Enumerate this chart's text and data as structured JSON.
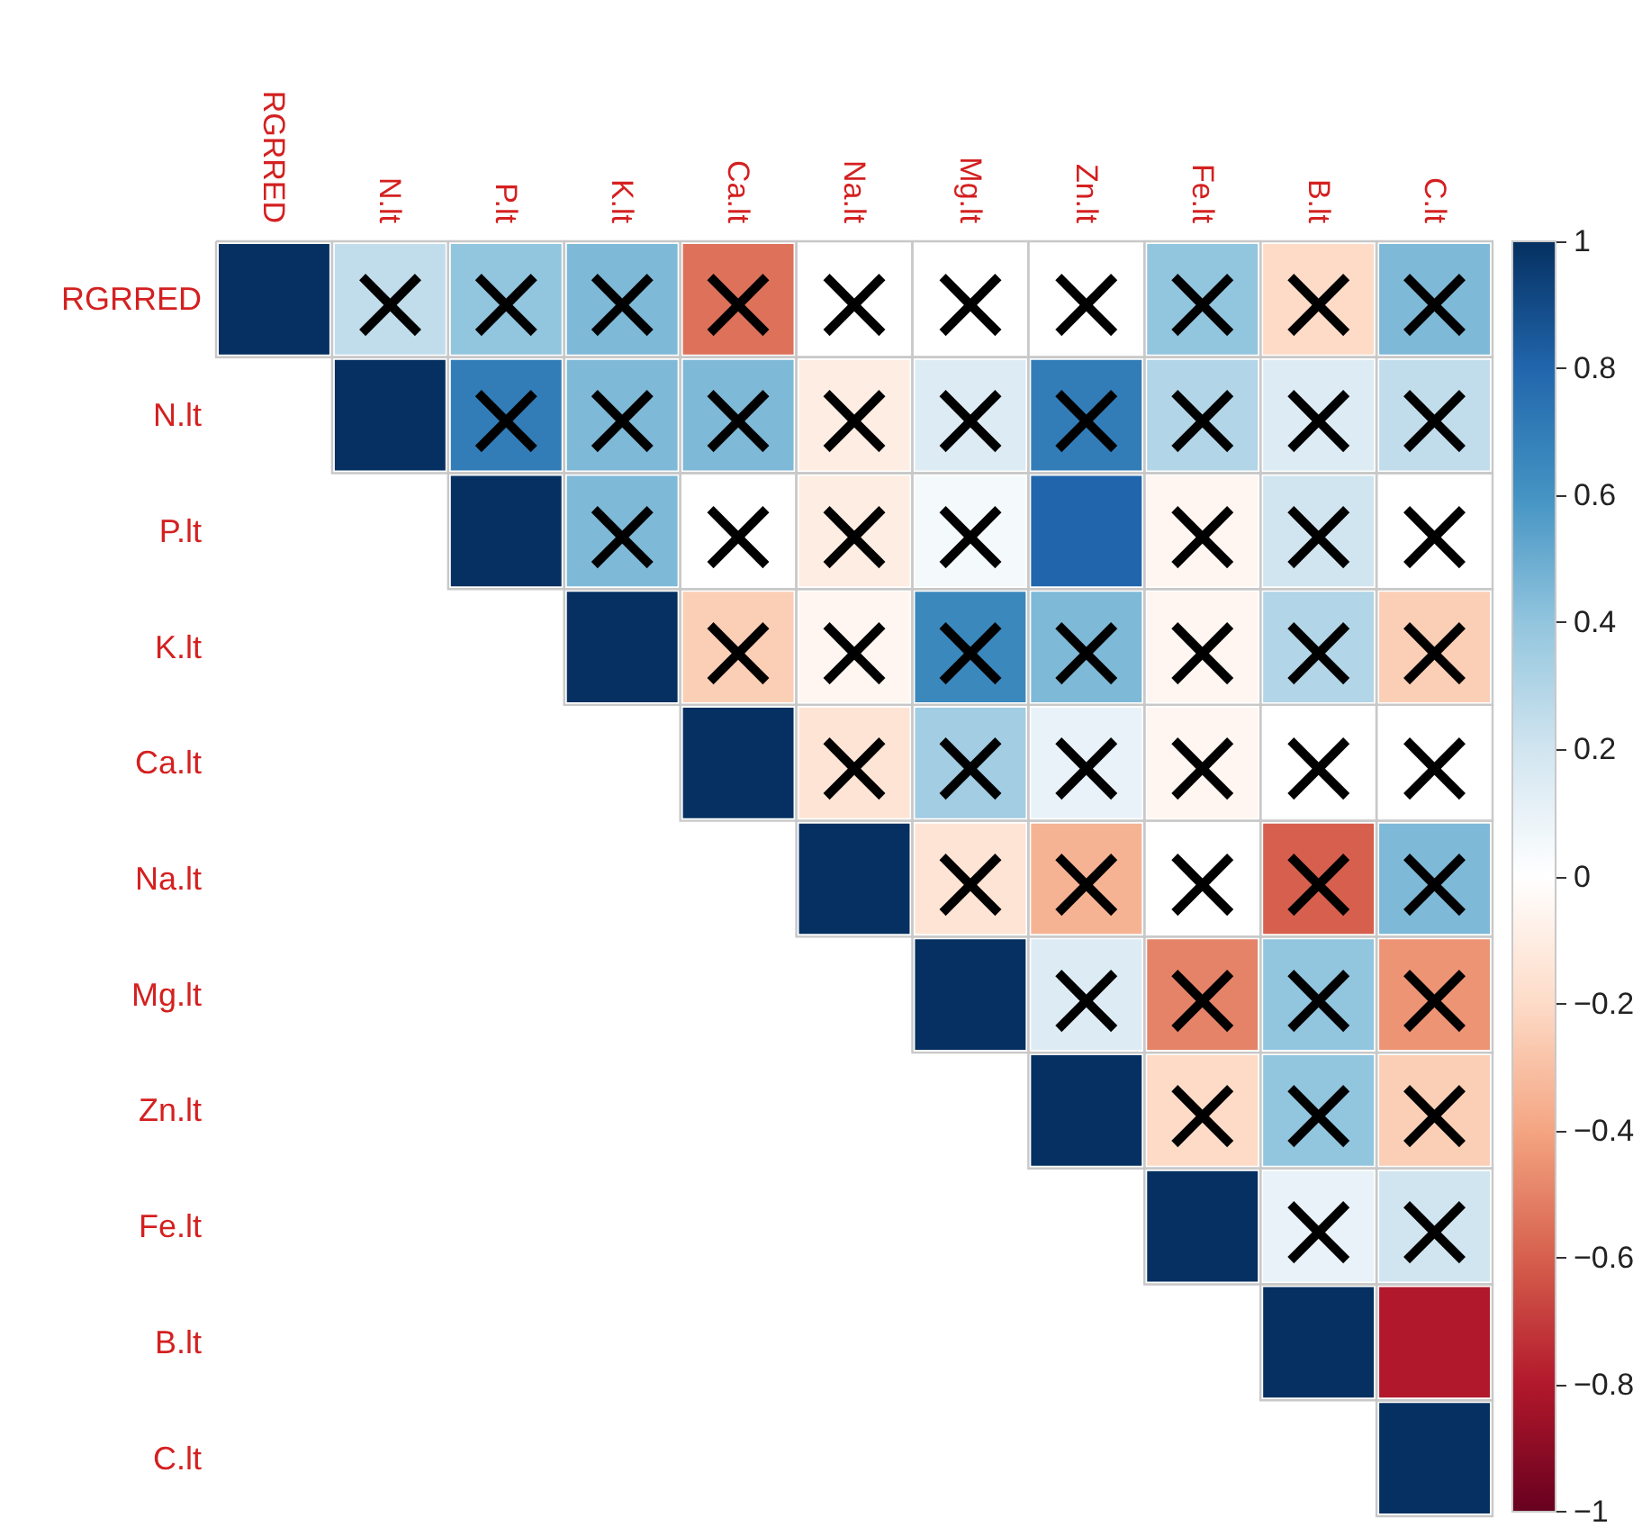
{
  "chart_data": {
    "type": "heatmap",
    "categories": [
      "RGRRED",
      "N.lt",
      "P.lt",
      "K.lt",
      "Ca.lt",
      "Na.lt",
      "Mg.lt",
      "Zn.lt",
      "Fe.lt",
      "B.lt",
      "C.lt"
    ],
    "y_categories": [
      "RGRRED",
      "N.lt",
      "P.lt",
      "K.lt",
      "Ca.lt",
      "Na.lt",
      "Mg.lt",
      "Zn.lt",
      "Fe.lt",
      "B.lt",
      "C.lt"
    ],
    "cells": [
      [
        1,
        0.25,
        0.4,
        0.45,
        -0.55,
        0,
        0,
        0,
        0.4,
        -0.2,
        0.45
      ],
      [
        null,
        1,
        0.7,
        0.45,
        0.45,
        -0.1,
        0.15,
        0.7,
        0.3,
        0.15,
        0.25
      ],
      [
        null,
        null,
        1,
        0.45,
        0,
        -0.1,
        0.05,
        0.8,
        -0.05,
        0.2,
        0
      ],
      [
        null,
        null,
        null,
        1,
        -0.25,
        -0.05,
        0.65,
        0.45,
        -0.05,
        0.3,
        -0.25
      ],
      [
        null,
        null,
        null,
        null,
        1,
        -0.15,
        0.35,
        0.1,
        -0.05,
        0,
        0
      ],
      [
        null,
        null,
        null,
        null,
        null,
        1,
        -0.15,
        -0.35,
        0,
        -0.6,
        0.45
      ],
      [
        null,
        null,
        null,
        null,
        null,
        null,
        1,
        0.15,
        -0.5,
        0.4,
        -0.45
      ],
      [
        null,
        null,
        null,
        null,
        null,
        null,
        null,
        1,
        -0.2,
        0.4,
        -0.25
      ],
      [
        null,
        null,
        null,
        null,
        null,
        null,
        null,
        null,
        1,
        0.1,
        0.2
      ],
      [
        null,
        null,
        null,
        null,
        null,
        null,
        null,
        null,
        null,
        1,
        -0.8
      ],
      [
        null,
        null,
        null,
        null,
        null,
        null,
        null,
        null,
        null,
        null,
        1
      ]
    ],
    "cell_labels": [
      [
        null,
        "×",
        "×",
        "×",
        "×",
        "×",
        "×",
        "×",
        "×",
        "×",
        "×"
      ],
      [
        null,
        null,
        "×",
        "×",
        "×",
        "×",
        "×",
        "×",
        "×",
        "×",
        "×"
      ],
      [
        null,
        null,
        null,
        "×",
        "×",
        "×",
        "×",
        null,
        "×",
        "×",
        "×"
      ],
      [
        null,
        null,
        null,
        null,
        "×",
        "×",
        "×",
        "×",
        "×",
        "×",
        "×"
      ],
      [
        null,
        null,
        null,
        null,
        null,
        "×",
        "×",
        "×",
        "×",
        "×",
        "×"
      ],
      [
        null,
        null,
        null,
        null,
        null,
        null,
        "×",
        "×",
        "×",
        "×",
        "×"
      ],
      [
        null,
        null,
        null,
        null,
        null,
        null,
        null,
        "×",
        "×",
        "×",
        "×"
      ],
      [
        null,
        null,
        null,
        null,
        null,
        null,
        null,
        null,
        "×",
        "×",
        "×"
      ],
      [
        null,
        null,
        null,
        null,
        null,
        null,
        null,
        null,
        null,
        "×",
        "×"
      ],
      [
        null,
        null,
        null,
        null,
        null,
        null,
        null,
        null,
        null,
        null,
        null
      ],
      [
        null,
        null,
        null,
        null,
        null,
        null,
        null,
        null,
        null,
        null,
        null
      ]
    ],
    "clim": [
      -1,
      1
    ],
    "cticks": [
      {
        "value": -1,
        "label": "−1"
      },
      {
        "value": -0.8,
        "label": "−0.8"
      },
      {
        "value": -0.6,
        "label": "−0.6"
      },
      {
        "value": -0.4,
        "label": "−0.4"
      },
      {
        "value": -0.2,
        "label": "−0.2"
      },
      {
        "value": 0,
        "label": "0"
      },
      {
        "value": 0.2,
        "label": "0.2"
      },
      {
        "value": 0.4,
        "label": "0.4"
      },
      {
        "value": 0.6,
        "label": "0.6"
      },
      {
        "value": 0.8,
        "label": "0.8"
      },
      {
        "value": 1,
        "label": "1"
      }
    ]
  }
}
